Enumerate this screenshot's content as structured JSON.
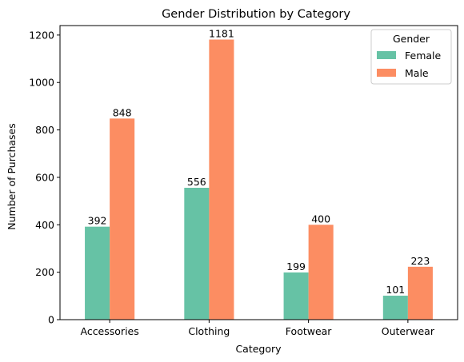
{
  "chart_data": {
    "type": "bar",
    "title": "Gender Distribution by Category",
    "xlabel": "Category",
    "ylabel": "Number of Purchases",
    "categories": [
      "Accessories",
      "Clothing",
      "Footwear",
      "Outerwear"
    ],
    "series": [
      {
        "name": "Female",
        "color": "#66c2a5",
        "values": [
          392,
          556,
          199,
          101
        ]
      },
      {
        "name": "Male",
        "color": "#fc8d62",
        "values": [
          848,
          1181,
          400,
          223
        ]
      }
    ],
    "ylim": [
      0,
      1240
    ],
    "yticks": [
      0,
      200,
      400,
      600,
      800,
      1000,
      1200
    ],
    "grid": false,
    "legend": {
      "title": "Gender",
      "position": "top-right"
    }
  }
}
